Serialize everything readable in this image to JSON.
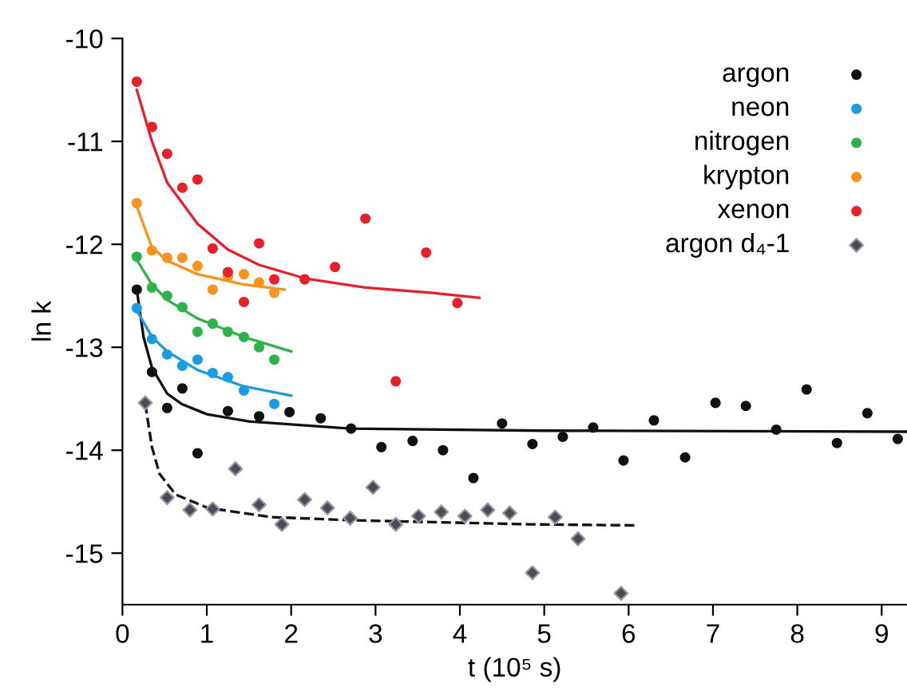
{
  "chart_data": {
    "type": "scatter",
    "xlabel": "t (10⁵ s)",
    "ylabel": "ln k",
    "xlim": [
      0,
      9.3
    ],
    "ylim": [
      -15.5,
      -10
    ],
    "xticks": [
      0,
      1,
      2,
      3,
      4,
      5,
      6,
      7,
      8,
      9
    ],
    "yticks": [
      -10,
      -11,
      -12,
      -13,
      -14,
      -15
    ],
    "grid": false,
    "legend": "top right",
    "series": [
      {
        "name": "argon",
        "marker": "circle",
        "color": "#111111",
        "x": [
          0.17,
          0.35,
          0.53,
          0.71,
          0.89,
          1.25,
          1.62,
          1.98,
          2.35,
          2.71,
          3.07,
          3.44,
          3.8,
          4.16,
          4.5,
          4.86,
          5.22,
          5.58,
          5.94,
          6.3,
          6.67,
          7.03,
          7.39,
          7.75,
          8.11,
          8.47,
          8.83,
          9.19
        ],
        "values": [
          -12.44,
          -13.24,
          -13.59,
          -13.4,
          -14.03,
          -13.62,
          -13.67,
          -13.63,
          -13.69,
          -13.79,
          -13.97,
          -13.91,
          -14.0,
          -14.27,
          -13.74,
          -13.94,
          -13.87,
          -13.78,
          -14.1,
          -13.71,
          -14.07,
          -13.54,
          -13.57,
          -13.8,
          -13.41,
          -13.93,
          -13.64,
          -13.89
        ]
      },
      {
        "name": "neon",
        "marker": "circle",
        "color": "#1b9ce2",
        "x": [
          0.17,
          0.35,
          0.53,
          0.71,
          0.89,
          1.07,
          1.25,
          1.44,
          1.8
        ],
        "values": [
          -12.62,
          -12.92,
          -13.07,
          -13.18,
          -13.12,
          -13.25,
          -13.29,
          -13.42,
          -13.55
        ]
      },
      {
        "name": "nitrogen",
        "marker": "circle",
        "color": "#2eb34b",
        "x": [
          0.17,
          0.35,
          0.53,
          0.71,
          0.89,
          1.07,
          1.25,
          1.44,
          1.62,
          1.8
        ],
        "values": [
          -12.12,
          -12.42,
          -12.5,
          -12.61,
          -12.85,
          -12.77,
          -12.85,
          -12.9,
          -13.0,
          -13.12
        ]
      },
      {
        "name": "krypton",
        "marker": "circle",
        "color": "#f7941d",
        "x": [
          0.17,
          0.35,
          0.53,
          0.71,
          0.89,
          1.07,
          1.25,
          1.44,
          1.62,
          1.8
        ],
        "values": [
          -11.6,
          -12.06,
          -12.13,
          -12.13,
          -12.21,
          -12.44,
          -12.31,
          -12.29,
          -12.37,
          -12.47
        ]
      },
      {
        "name": "xenon",
        "marker": "circle",
        "color": "#e8202a",
        "x": [
          0.17,
          0.35,
          0.53,
          0.71,
          0.89,
          1.07,
          1.25,
          1.44,
          1.62,
          1.8,
          2.16,
          2.52,
          2.88,
          3.24,
          3.6,
          3.97
        ],
        "values": [
          -10.42,
          -10.86,
          -11.12,
          -11.45,
          -11.37,
          -12.04,
          -12.27,
          -12.56,
          -11.99,
          -12.34,
          -12.34,
          -12.22,
          -11.75,
          -13.33,
          -12.08,
          -12.57
        ]
      },
      {
        "name": "argon d₄-1",
        "marker": "diamond",
        "color": "#4a4a5a",
        "x": [
          0.27,
          0.53,
          0.8,
          1.07,
          1.34,
          1.62,
          1.89,
          2.16,
          2.43,
          2.7,
          2.97,
          3.24,
          3.51,
          3.78,
          4.06,
          4.33,
          4.59,
          4.86,
          5.13,
          5.4,
          5.91
        ],
        "values": [
          -13.54,
          -14.46,
          -14.58,
          -14.57,
          -14.18,
          -14.53,
          -14.72,
          -14.48,
          -14.56,
          -14.66,
          -14.36,
          -14.72,
          -14.64,
          -14.6,
          -14.64,
          -14.58,
          -14.61,
          -15.19,
          -14.65,
          -14.86,
          -15.39
        ]
      },
      {
        "type": "line",
        "line_style": "solid",
        "color": "#111111",
        "x": [
          0.17,
          0.25,
          0.35,
          0.53,
          0.7,
          1.0,
          1.5,
          2.7,
          5.0,
          9.3
        ],
        "values": [
          -12.44,
          -12.9,
          -13.2,
          -13.45,
          -13.55,
          -13.65,
          -13.72,
          -13.79,
          -13.81,
          -13.82
        ]
      },
      {
        "type": "line",
        "line_style": "solid",
        "color": "#1b9ce2",
        "x": [
          0.17,
          0.35,
          0.53,
          0.89,
          1.44,
          2.0
        ],
        "values": [
          -12.64,
          -12.9,
          -13.04,
          -13.22,
          -13.38,
          -13.47
        ]
      },
      {
        "type": "line",
        "line_style": "solid",
        "color": "#2eb34b",
        "x": [
          0.17,
          0.35,
          0.53,
          0.89,
          1.44,
          2.0
        ],
        "values": [
          -12.15,
          -12.39,
          -12.54,
          -12.72,
          -12.9,
          -13.04
        ]
      },
      {
        "type": "line",
        "line_style": "solid",
        "color": "#f7941d",
        "x": [
          0.17,
          0.35,
          0.53,
          0.89,
          1.44,
          1.92
        ],
        "values": [
          -11.63,
          -12.03,
          -12.16,
          -12.29,
          -12.39,
          -12.44
        ]
      },
      {
        "type": "line",
        "line_style": "solid",
        "color": "#e8202a",
        "x": [
          0.17,
          0.35,
          0.53,
          0.71,
          0.89,
          1.25,
          1.62,
          2.16,
          2.88,
          3.66,
          4.23
        ],
        "values": [
          -10.5,
          -11.0,
          -11.4,
          -11.6,
          -11.8,
          -12.05,
          -12.2,
          -12.33,
          -12.42,
          -12.47,
          -12.52
        ]
      },
      {
        "type": "line",
        "line_style": "dashed",
        "color": "#111111",
        "x": [
          0.27,
          0.35,
          0.44,
          0.63,
          1.01,
          1.77,
          2.71,
          4.82,
          6.07
        ],
        "values": [
          -13.55,
          -13.97,
          -14.23,
          -14.43,
          -14.56,
          -14.65,
          -14.68,
          -14.72,
          -14.73
        ]
      }
    ]
  }
}
